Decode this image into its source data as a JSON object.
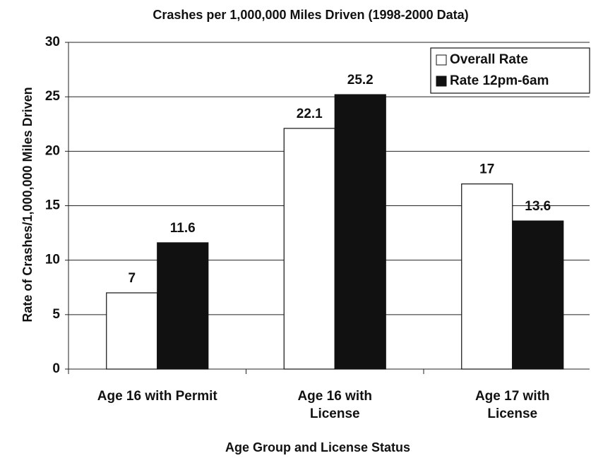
{
  "chart_data": {
    "type": "bar",
    "title": "Crashes per 1,000,000 Miles Driven (1998-2000 Data)",
    "y_label": "Rate of Crashes/1,000,000 Miles Driven",
    "x_label": "Age Group and License Status",
    "categories": [
      "Age 16 with Permit",
      "Age 16 with License",
      "Age 17 with License"
    ],
    "series": [
      {
        "name": "Overall Rate",
        "color": "#ffffff",
        "values": [
          7,
          22.1,
          17
        ]
      },
      {
        "name": "Rate 12pm-6am",
        "color": "#111111",
        "values": [
          11.6,
          25.2,
          13.6
        ]
      }
    ],
    "ylim": [
      0,
      30
    ],
    "yticks": [
      0,
      5,
      10,
      15,
      20,
      25,
      30
    ],
    "grid": true,
    "legend": "top-right"
  }
}
